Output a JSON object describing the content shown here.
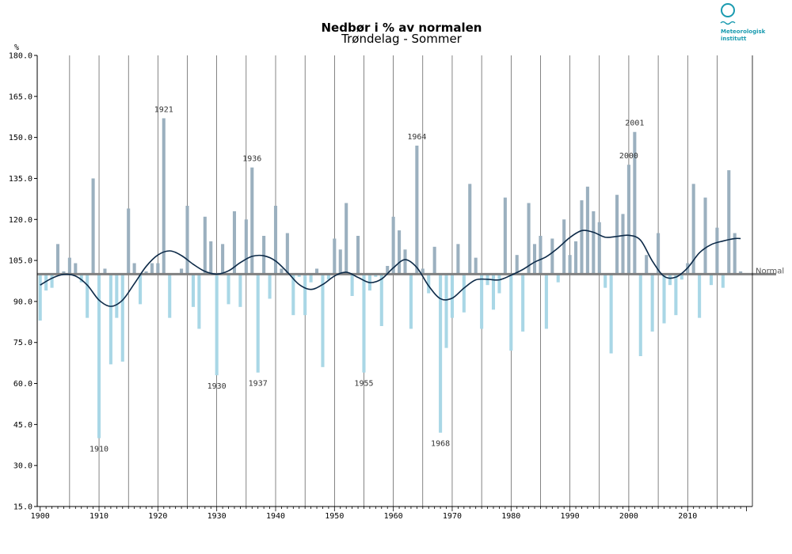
{
  "logo": {
    "line1": "Meteorologisk",
    "line2": "institutt",
    "color": "#1a9bb0"
  },
  "chart_data": {
    "type": "bar",
    "title": "Nedbør i % av normalen",
    "subtitle": "Trøndelag - Sommer",
    "ylabel": "%",
    "ylim": [
      15,
      180
    ],
    "baseline": 100,
    "normal_label": "Normal",
    "yticks": [
      15,
      30,
      45,
      60,
      75,
      90,
      105,
      120,
      135,
      150,
      165,
      180
    ],
    "ytick_labels": [
      "15.0",
      "30.0",
      "45.0",
      "60.0",
      "75.0",
      "90.0",
      "105.0",
      "120.0",
      "135.0",
      "150.0",
      "165.0",
      "180.0"
    ],
    "xlim": [
      1899.5,
      2021
    ],
    "xticks": [
      1900,
      1910,
      1920,
      1930,
      1940,
      1950,
      1960,
      1970,
      1980,
      1990,
      2000,
      2010
    ],
    "colors": {
      "above": "#9bb0bf",
      "below": "#a9d7e6",
      "baseline": "#808080",
      "smooth": "#0d2a48"
    },
    "years": [
      1900,
      1901,
      1902,
      1903,
      1904,
      1905,
      1906,
      1907,
      1908,
      1909,
      1910,
      1911,
      1912,
      1913,
      1914,
      1915,
      1916,
      1917,
      1918,
      1919,
      1920,
      1921,
      1922,
      1923,
      1924,
      1925,
      1926,
      1927,
      1928,
      1929,
      1930,
      1931,
      1932,
      1933,
      1934,
      1935,
      1936,
      1937,
      1938,
      1939,
      1940,
      1941,
      1942,
      1943,
      1944,
      1945,
      1946,
      1947,
      1948,
      1949,
      1950,
      1951,
      1952,
      1953,
      1954,
      1955,
      1956,
      1957,
      1958,
      1959,
      1960,
      1961,
      1962,
      1963,
      1964,
      1965,
      1966,
      1967,
      1968,
      1969,
      1970,
      1971,
      1972,
      1973,
      1974,
      1975,
      1976,
      1977,
      1978,
      1979,
      1980,
      1981,
      1982,
      1983,
      1984,
      1985,
      1986,
      1987,
      1988,
      1989,
      1990,
      1991,
      1992,
      1993,
      1994,
      1995,
      1996,
      1997,
      1998,
      1999,
      2000,
      2001,
      2002,
      2003,
      2004,
      2005,
      2006,
      2007,
      2008,
      2009,
      2010,
      2011,
      2012,
      2013,
      2014,
      2015,
      2016,
      2017,
      2018,
      2019
    ],
    "values": [
      83,
      94,
      95,
      111,
      101,
      106,
      104,
      97,
      84,
      135,
      40,
      102,
      67,
      84,
      68,
      124,
      104,
      89,
      101,
      104,
      104,
      157,
      84,
      100,
      102,
      125,
      88,
      80,
      121,
      112,
      63,
      111,
      89,
      123,
      88,
      120,
      139,
      64,
      114,
      91,
      125,
      102,
      115,
      85,
      99,
      85,
      97,
      102,
      66,
      98,
      113,
      109,
      126,
      92,
      114,
      64,
      94,
      99,
      81,
      103,
      121,
      116,
      109,
      80,
      147,
      102,
      93,
      110,
      42,
      73,
      84,
      111,
      86,
      133,
      106,
      80,
      96,
      87,
      93,
      128,
      72,
      107,
      79,
      126,
      111,
      114,
      80,
      113,
      97,
      120,
      107,
      112,
      127,
      132,
      123,
      119,
      95,
      71,
      129,
      122,
      140,
      152,
      70,
      107,
      79,
      115,
      82,
      96,
      85,
      98,
      104,
      133,
      84,
      128,
      96,
      117,
      95,
      138,
      115,
      101
    ],
    "smooth": [
      [
        1900,
        96
      ],
      [
        1902,
        98.5
      ],
      [
        1904,
        99.9
      ],
      [
        1906,
        99.3
      ],
      [
        1908,
        96
      ],
      [
        1910,
        90.5
      ],
      [
        1912,
        88.2
      ],
      [
        1914,
        90.5
      ],
      [
        1916,
        96.5
      ],
      [
        1918,
        102.8
      ],
      [
        1920,
        107
      ],
      [
        1922,
        108.5
      ],
      [
        1924,
        106.8
      ],
      [
        1926,
        103.6
      ],
      [
        1928,
        101
      ],
      [
        1930,
        100
      ],
      [
        1932,
        101.2
      ],
      [
        1934,
        104.2
      ],
      [
        1936,
        106.5
      ],
      [
        1938,
        106.7
      ],
      [
        1940,
        104.8
      ],
      [
        1942,
        100.7
      ],
      [
        1944,
        96.2
      ],
      [
        1946,
        94.4
      ],
      [
        1948,
        96.2
      ],
      [
        1950,
        99.3
      ],
      [
        1952,
        100.7
      ],
      [
        1954,
        98.8
      ],
      [
        1956,
        96.9
      ],
      [
        1958,
        98.2
      ],
      [
        1960,
        102.3
      ],
      [
        1962,
        105.3
      ],
      [
        1964,
        102.4
      ],
      [
        1966,
        95.7
      ],
      [
        1968,
        91
      ],
      [
        1970,
        91.2
      ],
      [
        1972,
        94.9
      ],
      [
        1974,
        97.9
      ],
      [
        1976,
        98.1
      ],
      [
        1978,
        97.9
      ],
      [
        1980,
        99.6
      ],
      [
        1982,
        101.7
      ],
      [
        1984,
        104.4
      ],
      [
        1986,
        106.4
      ],
      [
        1988,
        109.6
      ],
      [
        1990,
        113.4
      ],
      [
        1992,
        115.9
      ],
      [
        1994,
        115.3
      ],
      [
        1996,
        113.5
      ],
      [
        1998,
        113.8
      ],
      [
        2000,
        114.2
      ],
      [
        2002,
        112.4
      ],
      [
        2004,
        104.8
      ],
      [
        2006,
        99.2
      ],
      [
        2008,
        98.9
      ],
      [
        2010,
        102.3
      ],
      [
        2012,
        107.8
      ],
      [
        2014,
        110.8
      ],
      [
        2016,
        112.1
      ],
      [
        2018,
        113
      ],
      [
        2019,
        113
      ]
    ],
    "annotations": [
      {
        "year": 1910,
        "label": "1910",
        "pos": "below"
      },
      {
        "year": 1921,
        "label": "1921",
        "pos": "above"
      },
      {
        "year": 1930,
        "label": "1930",
        "pos": "below"
      },
      {
        "year": 1936,
        "label": "1936",
        "pos": "above"
      },
      {
        "year": 1937,
        "label": "1937",
        "pos": "below"
      },
      {
        "year": 1955,
        "label": "1955",
        "pos": "below"
      },
      {
        "year": 1964,
        "label": "1964",
        "pos": "above"
      },
      {
        "year": 1968,
        "label": "1968",
        "pos": "below"
      },
      {
        "year": 2000,
        "label": "2000",
        "pos": "above"
      },
      {
        "year": 2001,
        "label": "2001",
        "pos": "above"
      }
    ]
  }
}
